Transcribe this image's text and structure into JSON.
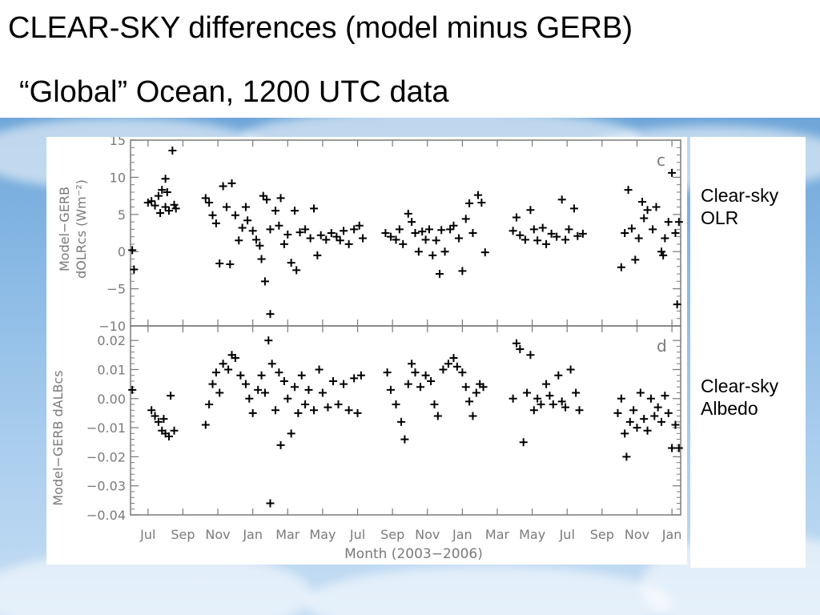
{
  "slide": {
    "title": "CLEAR-SKY differences (model minus GERB)",
    "subtitle": "“Global” Ocean, 1200 UTC data"
  },
  "side_labels": [
    {
      "line1": "Clear-sky",
      "line2": "OLR"
    },
    {
      "line1": "Clear-sky",
      "line2": "Albedo"
    }
  ],
  "chart_data": [
    {
      "type": "scatter",
      "panel_label": "c",
      "ylabel_line1": "Model−GERB",
      "ylabel_line2": "dOLRcs  (Wm⁻²)",
      "ylim": [
        -10,
        15
      ],
      "yticks": [
        15,
        10,
        5,
        0,
        -5,
        -10
      ],
      "ytick_labels": [
        "15",
        "10",
        "5",
        "0",
        "−5",
        "−10"
      ],
      "xlim": [
        0,
        31.5
      ],
      "marker": "+",
      "series": [
        {
          "points": [
            [
              0.1,
              0.2
            ],
            [
              0.2,
              -2.4
            ],
            [
              1.0,
              6.6
            ],
            [
              1.2,
              6.8
            ],
            [
              1.4,
              6.2
            ],
            [
              1.6,
              7.5
            ],
            [
              1.8,
              8.3
            ],
            [
              2.0,
              6.0
            ],
            [
              2.2,
              5.5
            ],
            [
              2.4,
              13.6
            ],
            [
              2.0,
              9.8
            ],
            [
              2.1,
              8.0
            ],
            [
              2.6,
              5.8
            ],
            [
              2.5,
              6.3
            ],
            [
              1.7,
              5.2
            ],
            [
              4.3,
              7.2
            ],
            [
              4.5,
              6.6
            ],
            [
              4.7,
              4.9
            ],
            [
              4.9,
              3.8
            ],
            [
              5.1,
              -1.6
            ],
            [
              5.3,
              8.8
            ],
            [
              5.5,
              6.0
            ],
            [
              5.7,
              -1.7
            ],
            [
              5.8,
              9.2
            ],
            [
              6.0,
              4.9
            ],
            [
              6.2,
              1.5
            ],
            [
              6.4,
              3.2
            ],
            [
              6.6,
              6.0
            ],
            [
              6.7,
              4.2
            ],
            [
              7.0,
              2.8
            ],
            [
              7.2,
              1.6
            ],
            [
              7.4,
              0.8
            ],
            [
              7.5,
              -1.0
            ],
            [
              7.6,
              7.5
            ],
            [
              7.7,
              -4.0
            ],
            [
              7.8,
              7.0
            ],
            [
              8.0,
              -8.4
            ],
            [
              8.0,
              3.0
            ],
            [
              8.3,
              5.5
            ],
            [
              8.5,
              3.5
            ],
            [
              8.6,
              7.2
            ],
            [
              8.8,
              1.0
            ],
            [
              9.0,
              2.3
            ],
            [
              9.2,
              -1.5
            ],
            [
              9.5,
              -2.5
            ],
            [
              9.4,
              5.5
            ],
            [
              9.7,
              2.6
            ],
            [
              10.0,
              3.0
            ],
            [
              10.3,
              1.8
            ],
            [
              10.5,
              5.8
            ],
            [
              10.7,
              -0.5
            ],
            [
              10.9,
              2.2
            ],
            [
              11.2,
              1.6
            ],
            [
              11.5,
              2.5
            ],
            [
              11.8,
              2.0
            ],
            [
              12.0,
              1.5
            ],
            [
              12.2,
              2.8
            ],
            [
              12.5,
              1.0
            ],
            [
              12.8,
              3.0
            ],
            [
              13.1,
              3.5
            ],
            [
              13.3,
              1.8
            ],
            [
              14.6,
              2.5
            ],
            [
              14.9,
              2.0
            ],
            [
              15.2,
              1.6
            ],
            [
              15.4,
              3.0
            ],
            [
              15.6,
              1.0
            ],
            [
              15.9,
              5.1
            ],
            [
              16.1,
              4.0
            ],
            [
              16.3,
              2.5
            ],
            [
              16.5,
              0.0
            ],
            [
              16.7,
              2.7
            ],
            [
              16.9,
              1.6
            ],
            [
              17.1,
              3.0
            ],
            [
              17.3,
              -0.5
            ],
            [
              17.5,
              1.5
            ],
            [
              17.7,
              -3.0
            ],
            [
              17.8,
              2.9
            ],
            [
              18.0,
              0.0
            ],
            [
              18.3,
              3.0
            ],
            [
              18.5,
              3.5
            ],
            [
              18.8,
              1.8
            ],
            [
              19.0,
              -2.6
            ],
            [
              19.2,
              4.4
            ],
            [
              19.4,
              6.5
            ],
            [
              19.6,
              2.5
            ],
            [
              19.9,
              7.6
            ],
            [
              20.1,
              6.6
            ],
            [
              20.3,
              -0.1
            ],
            [
              21.9,
              2.8
            ],
            [
              22.1,
              4.6
            ],
            [
              22.3,
              2.2
            ],
            [
              22.6,
              1.6
            ],
            [
              22.9,
              5.6
            ],
            [
              23.1,
              3.0
            ],
            [
              23.3,
              1.5
            ],
            [
              23.6,
              3.2
            ],
            [
              23.8,
              1.0
            ],
            [
              24.1,
              2.4
            ],
            [
              24.4,
              2.0
            ],
            [
              24.7,
              7.0
            ],
            [
              24.9,
              1.6
            ],
            [
              25.1,
              3.0
            ],
            [
              25.4,
              5.8
            ],
            [
              25.6,
              2.1
            ],
            [
              25.9,
              2.4
            ],
            [
              28.1,
              -2.1
            ],
            [
              28.3,
              2.5
            ],
            [
              28.5,
              8.3
            ],
            [
              28.7,
              3.1
            ],
            [
              28.9,
              -1.1
            ],
            [
              29.1,
              1.8
            ],
            [
              29.4,
              4.5
            ],
            [
              29.6,
              5.6
            ],
            [
              29.9,
              3.0
            ],
            [
              30.1,
              6.0
            ],
            [
              30.4,
              0.0
            ],
            [
              30.6,
              1.8
            ],
            [
              30.8,
              4.0
            ],
            [
              31.0,
              10.6
            ],
            [
              31.2,
              2.5
            ],
            [
              31.3,
              -7.1
            ],
            [
              31.4,
              4.0
            ],
            [
              29.3,
              6.7
            ],
            [
              30.5,
              -0.5
            ]
          ]
        }
      ]
    },
    {
      "type": "scatter",
      "panel_label": "d",
      "ylabel_line1": "Model−GERB  dALBcs",
      "ylim": [
        -0.04,
        0.025
      ],
      "yticks": [
        0.02,
        0.01,
        0.0,
        -0.01,
        -0.02,
        -0.03,
        -0.04
      ],
      "ytick_labels": [
        "0.02",
        "0.01",
        "0.00",
        "−0.01",
        "−0.02",
        "−0.03",
        "−0.04"
      ],
      "xlim": [
        0,
        31.5
      ],
      "xtick_labels": [
        "Jul",
        "Sep",
        "Nov",
        "Jan",
        "Mar",
        "May",
        "Jul",
        "Sep",
        "Nov",
        "Jan",
        "Mar",
        "May",
        "Jul",
        "Sep",
        "Nov",
        "Jan"
      ],
      "xticks": [
        1,
        3,
        5,
        7,
        9,
        11,
        13,
        15,
        17,
        19,
        21,
        23,
        25,
        27,
        29,
        31
      ],
      "xlabel": "Month  (2003−2006)",
      "marker": "+",
      "series": [
        {
          "points": [
            [
              0.1,
              0.003
            ],
            [
              1.2,
              -0.004
            ],
            [
              1.4,
              -0.006
            ],
            [
              1.6,
              -0.008
            ],
            [
              1.8,
              -0.011
            ],
            [
              2.0,
              -0.012
            ],
            [
              2.2,
              -0.013
            ],
            [
              2.3,
              0.001
            ],
            [
              2.5,
              -0.011
            ],
            [
              1.9,
              -0.007
            ],
            [
              4.3,
              -0.009
            ],
            [
              4.5,
              -0.002
            ],
            [
              4.7,
              0.005
            ],
            [
              4.9,
              0.009
            ],
            [
              5.1,
              0.002
            ],
            [
              5.3,
              0.012
            ],
            [
              5.6,
              0.01
            ],
            [
              5.8,
              0.015
            ],
            [
              6.0,
              0.014
            ],
            [
              6.3,
              0.008
            ],
            [
              6.6,
              0.005
            ],
            [
              6.8,
              0.0
            ],
            [
              7.0,
              -0.005
            ],
            [
              7.3,
              0.003
            ],
            [
              7.5,
              0.008
            ],
            [
              7.7,
              0.002
            ],
            [
              7.9,
              0.02
            ],
            [
              8.0,
              -0.036
            ],
            [
              8.1,
              0.012
            ],
            [
              8.3,
              -0.004
            ],
            [
              8.5,
              0.009
            ],
            [
              8.6,
              -0.016
            ],
            [
              8.8,
              0.006
            ],
            [
              9.0,
              0.0
            ],
            [
              9.2,
              -0.012
            ],
            [
              9.4,
              0.004
            ],
            [
              9.6,
              -0.005
            ],
            [
              9.8,
              0.008
            ],
            [
              10.0,
              -0.002
            ],
            [
              10.2,
              0.003
            ],
            [
              10.5,
              -0.004
            ],
            [
              10.8,
              0.01
            ],
            [
              11.0,
              0.002
            ],
            [
              11.3,
              -0.003
            ],
            [
              11.6,
              0.006
            ],
            [
              11.9,
              -0.002
            ],
            [
              12.2,
              0.005
            ],
            [
              12.5,
              -0.004
            ],
            [
              12.8,
              0.007
            ],
            [
              13.0,
              -0.005
            ],
            [
              13.2,
              0.008
            ],
            [
              14.7,
              0.009
            ],
            [
              14.9,
              0.003
            ],
            [
              15.2,
              -0.002
            ],
            [
              15.5,
              -0.008
            ],
            [
              15.7,
              -0.014
            ],
            [
              15.9,
              0.005
            ],
            [
              16.1,
              0.012
            ],
            [
              16.3,
              0.009
            ],
            [
              16.6,
              0.004
            ],
            [
              16.9,
              0.008
            ],
            [
              17.2,
              0.006
            ],
            [
              17.4,
              -0.002
            ],
            [
              17.6,
              -0.006
            ],
            [
              17.9,
              0.01
            ],
            [
              18.2,
              0.012
            ],
            [
              18.5,
              0.014
            ],
            [
              18.7,
              0.011
            ],
            [
              19.0,
              0.009
            ],
            [
              19.2,
              0.004
            ],
            [
              19.4,
              -0.001
            ],
            [
              19.6,
              -0.006
            ],
            [
              19.8,
              0.002
            ],
            [
              20.0,
              0.005
            ],
            [
              20.2,
              0.004
            ],
            [
              21.9,
              0.0
            ],
            [
              22.1,
              0.019
            ],
            [
              22.3,
              0.017
            ],
            [
              22.5,
              -0.015
            ],
            [
              22.7,
              0.002
            ],
            [
              22.9,
              0.015
            ],
            [
              23.1,
              -0.004
            ],
            [
              23.3,
              0.0
            ],
            [
              23.5,
              -0.002
            ],
            [
              23.8,
              0.005
            ],
            [
              24.0,
              0.001
            ],
            [
              24.2,
              -0.002
            ],
            [
              24.5,
              0.008
            ],
            [
              24.7,
              -0.001
            ],
            [
              24.9,
              -0.003
            ],
            [
              25.2,
              0.01
            ],
            [
              25.5,
              0.002
            ],
            [
              25.7,
              -0.004
            ],
            [
              27.9,
              -0.005
            ],
            [
              28.1,
              0.0
            ],
            [
              28.3,
              -0.012
            ],
            [
              28.4,
              -0.02
            ],
            [
              28.6,
              -0.008
            ],
            [
              28.8,
              -0.004
            ],
            [
              29.0,
              -0.01
            ],
            [
              29.2,
              0.002
            ],
            [
              29.4,
              -0.007
            ],
            [
              29.6,
              -0.011
            ],
            [
              29.8,
              0.0
            ],
            [
              30.0,
              -0.006
            ],
            [
              30.2,
              -0.003
            ],
            [
              30.4,
              -0.008
            ],
            [
              30.6,
              0.001
            ],
            [
              30.8,
              -0.005
            ],
            [
              31.0,
              -0.017
            ],
            [
              31.2,
              -0.009
            ],
            [
              31.4,
              -0.017
            ]
          ]
        }
      ]
    }
  ]
}
